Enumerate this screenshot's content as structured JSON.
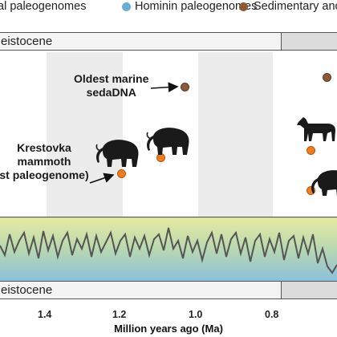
{
  "legend": {
    "items": [
      {
        "label": "al paleogenomes",
        "color": "#f07c1d"
      },
      {
        "label": "Hominin paleogenomes",
        "color": "#6aaed6"
      },
      {
        "label": "Sedimentary ancie",
        "color": "#8a5a3a"
      }
    ]
  },
  "top_band": {
    "label": "eistocene"
  },
  "bottom_band": {
    "label": "eistocene"
  },
  "annotations": {
    "marine": {
      "line1": "Oldest marine",
      "line2": "sedaDNA"
    },
    "mammoth": {
      "line1": "Krestovka",
      "line2": "mammoth",
      "line3": "st paleogenome)"
    }
  },
  "icons": {
    "mammoth_large": "mammoth-icon",
    "mammoth_small": "mammoth-icon",
    "horse": "horse-icon",
    "mammoth_right": "mammoth-icon"
  },
  "axis": {
    "title": "Million years ago (Ma)",
    "ticks": [
      "1.4",
      "1.2",
      "1.0",
      "0.8"
    ]
  },
  "colors": {
    "ancient_genome": "#f07c1d",
    "hominin": "#6aaed6",
    "sediment": "#8a5a3a",
    "climate_line": "#555555"
  }
}
